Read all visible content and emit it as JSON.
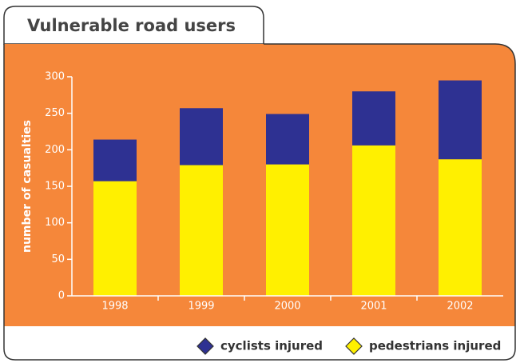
{
  "chart_data": {
    "type": "stacked_bar",
    "title": "Vulnerable road users",
    "y_label": "number of casualties",
    "categories": [
      "1998",
      "1999",
      "2000",
      "2001",
      "2002"
    ],
    "series": [
      {
        "name": "cyclists injured",
        "color": "#2e3192",
        "values": [
          57,
          78,
          69,
          74,
          108
        ]
      },
      {
        "name": "pedestrians injured",
        "color": "#fff000",
        "values": [
          157,
          179,
          180,
          206,
          187
        ]
      }
    ],
    "ylim": [
      0,
      300
    ],
    "yticks": [
      0,
      50,
      100,
      150,
      200,
      250,
      300
    ]
  }
}
